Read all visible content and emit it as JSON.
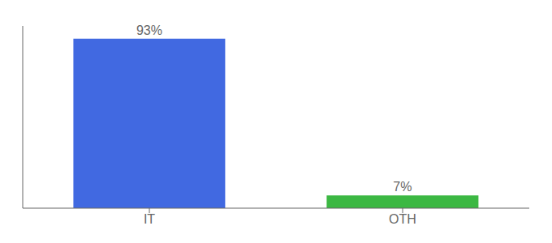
{
  "chart_data": {
    "type": "bar",
    "categories": [
      "IT",
      "OTH"
    ],
    "values": [
      93,
      7
    ],
    "colors": [
      "#4169e1",
      "#3cb843"
    ],
    "value_labels": [
      "93%",
      "7%"
    ],
    "data_labels": true,
    "ylim": [
      0,
      100
    ],
    "grid": false,
    "tick_labels": "x"
  }
}
